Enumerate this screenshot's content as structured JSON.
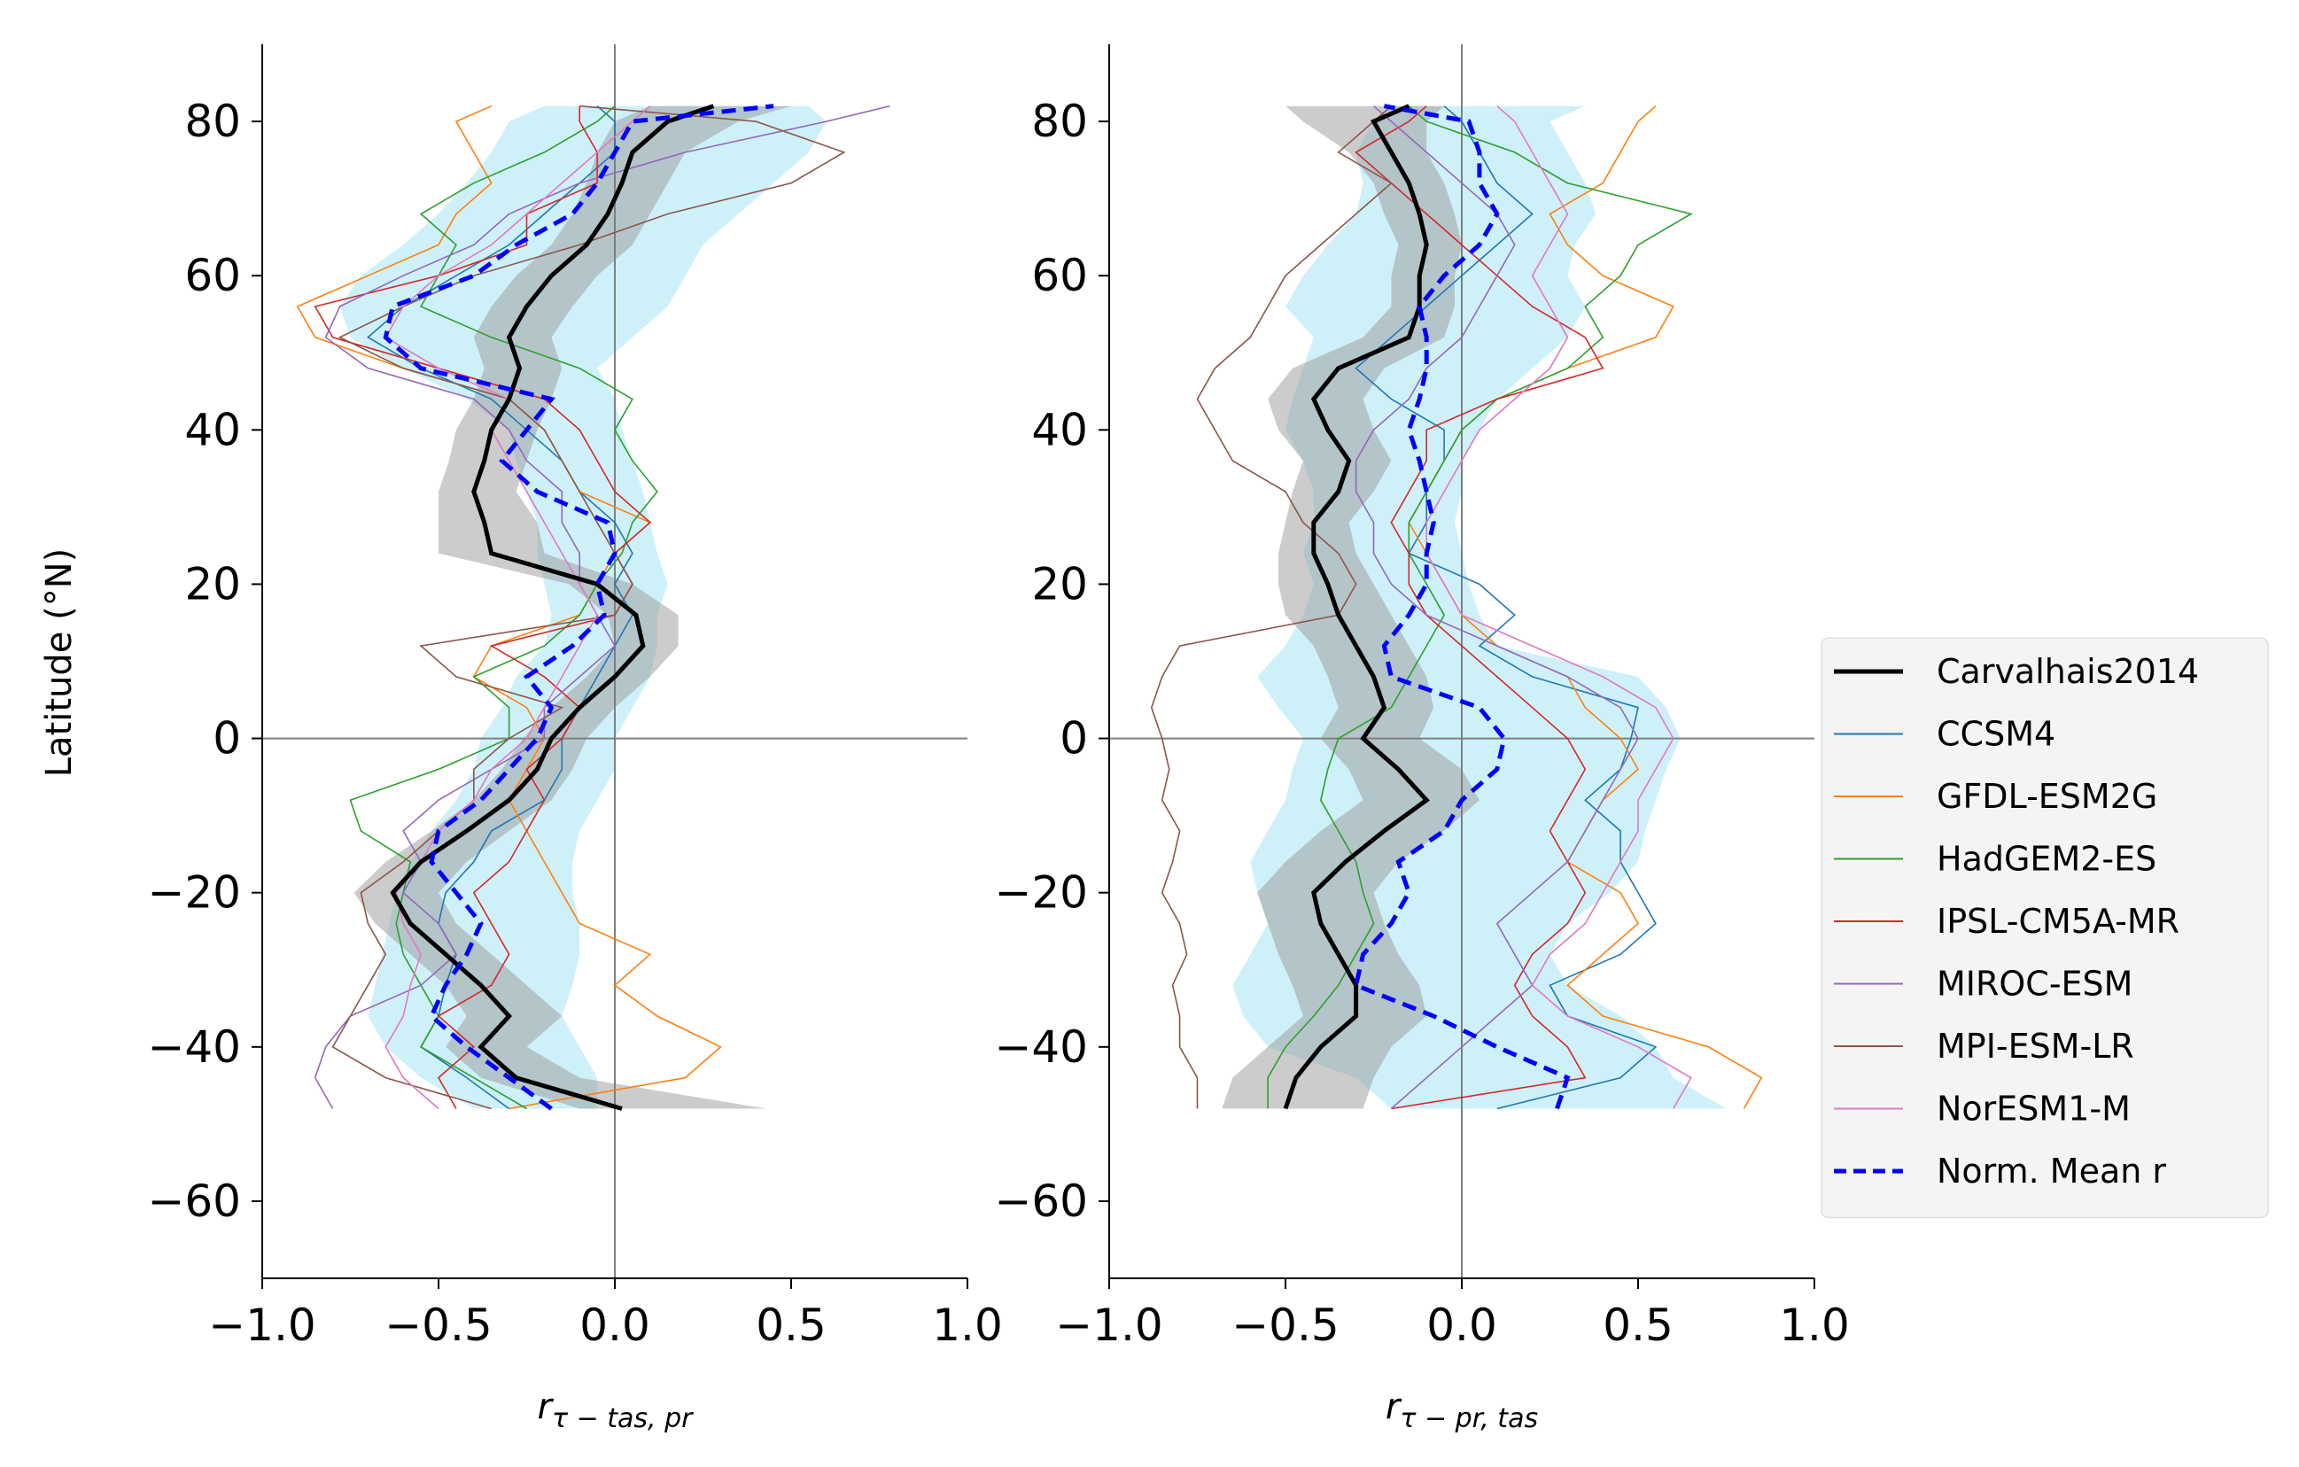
{
  "figure": {
    "ylabel": "Latitude (°N)",
    "legend_position": "right",
    "legend_entries": [
      {
        "name": "Carvalhais2014",
        "color": "#000000",
        "style": "solid-thick"
      },
      {
        "name": "CCSM4",
        "color": "#1f77b4",
        "style": "solid"
      },
      {
        "name": "GFDL-ESM2G",
        "color": "#ff7f0e",
        "style": "solid"
      },
      {
        "name": "HadGEM2-ES",
        "color": "#2ca02c",
        "style": "solid"
      },
      {
        "name": "IPSL-CM5A-MR",
        "color": "#d62728",
        "style": "solid"
      },
      {
        "name": "MIROC-ESM",
        "color": "#9467bd",
        "style": "solid"
      },
      {
        "name": "MPI-ESM-LR",
        "color": "#8c564b",
        "style": "solid"
      },
      {
        "name": "NorESM1-M",
        "color": "#e377c2",
        "style": "solid"
      },
      {
        "name": "Norm. Mean r",
        "color": "#0000ff",
        "style": "dashed"
      }
    ]
  },
  "chart_data": [
    {
      "type": "line",
      "xlabel_main": "r",
      "xlabel_sub": "τ − tas, pr",
      "xlim": [
        -1.0,
        1.0
      ],
      "ylim": [
        -70,
        90
      ],
      "xticks": [
        "−1.0",
        "−0.5",
        "0.0",
        "0.5",
        "1.0"
      ],
      "yticks": [
        "−60",
        "−40",
        "−20",
        "0",
        "20",
        "40",
        "60",
        "80"
      ],
      "grid": false,
      "reference_lines": {
        "x": 0,
        "y": 0
      },
      "lat": [
        -48,
        -44,
        -40,
        -36,
        -32,
        -28,
        -24,
        -20,
        -16,
        -12,
        -8,
        -4,
        0,
        4,
        8,
        12,
        16,
        20,
        24,
        28,
        32,
        36,
        40,
        44,
        48,
        52,
        56,
        60,
        64,
        68,
        72,
        76,
        80,
        82
      ],
      "carvalhais": {
        "r": [
          0.02,
          -0.28,
          -0.38,
          -0.3,
          -0.38,
          -0.48,
          -0.58,
          -0.63,
          -0.55,
          -0.42,
          -0.3,
          -0.22,
          -0.18,
          -0.1,
          0.0,
          0.08,
          0.06,
          -0.05,
          -0.35,
          -0.37,
          -0.4,
          -0.37,
          -0.35,
          -0.3,
          -0.27,
          -0.3,
          -0.25,
          -0.18,
          -0.08,
          -0.02,
          0.02,
          0.05,
          0.15,
          0.28
        ],
        "lower": [
          -0.1,
          -0.38,
          -0.48,
          -0.42,
          -0.48,
          -0.58,
          -0.68,
          -0.74,
          -0.65,
          -0.52,
          -0.4,
          -0.32,
          -0.26,
          -0.18,
          -0.08,
          0.0,
          -0.02,
          -0.13,
          -0.5,
          -0.5,
          -0.5,
          -0.47,
          -0.45,
          -0.4,
          -0.37,
          -0.4,
          -0.35,
          -0.28,
          -0.18,
          -0.12,
          -0.08,
          -0.05,
          0.0,
          0.1
        ],
        "upper": [
          0.43,
          -0.1,
          -0.25,
          -0.15,
          -0.25,
          -0.35,
          -0.45,
          -0.5,
          -0.42,
          -0.3,
          -0.18,
          -0.12,
          -0.08,
          0.0,
          0.1,
          0.18,
          0.18,
          0.05,
          -0.2,
          -0.22,
          -0.28,
          -0.25,
          -0.22,
          -0.18,
          -0.15,
          -0.18,
          -0.12,
          -0.05,
          0.05,
          0.1,
          0.15,
          0.2,
          0.35,
          0.5
        ]
      },
      "spread": {
        "lower": [
          -0.4,
          -0.55,
          -0.65,
          -0.7,
          -0.68,
          -0.66,
          -0.64,
          -0.62,
          -0.58,
          -0.52,
          -0.45,
          -0.4,
          -0.38,
          -0.32,
          -0.28,
          -0.2,
          -0.18,
          -0.2,
          -0.22,
          -0.22,
          -0.25,
          -0.28,
          -0.3,
          -0.42,
          -0.6,
          -0.75,
          -0.78,
          -0.72,
          -0.6,
          -0.5,
          -0.42,
          -0.35,
          -0.3,
          -0.2
        ],
        "upper": [
          -0.05,
          -0.05,
          -0.1,
          -0.15,
          -0.12,
          -0.1,
          -0.1,
          -0.12,
          -0.12,
          -0.1,
          -0.05,
          0.0,
          0.0,
          0.05,
          0.1,
          0.12,
          0.12,
          0.15,
          0.12,
          0.1,
          0.08,
          0.05,
          0.02,
          0.0,
          -0.05,
          0.05,
          0.15,
          0.2,
          0.25,
          0.35,
          0.45,
          0.55,
          0.6,
          0.55
        ]
      },
      "models": [
        {
          "name": "CCSM4",
          "r": [
            -0.3,
            -0.42,
            -0.55,
            -0.5,
            -0.48,
            -0.45,
            -0.5,
            -0.48,
            -0.4,
            -0.35,
            -0.2,
            -0.15,
            -0.15,
            -0.1,
            -0.05,
            0.0,
            0.05,
            0.0,
            0.05,
            0.0,
            -0.1,
            -0.15,
            -0.25,
            -0.35,
            -0.55,
            -0.7,
            -0.6,
            -0.45,
            -0.3,
            -0.2,
            -0.1,
            0.0,
            0.0,
            -0.05
          ]
        },
        {
          "name": "GFDL-ESM2G",
          "r": [
            -0.3,
            0.2,
            0.3,
            0.12,
            0.0,
            0.1,
            -0.1,
            -0.15,
            -0.2,
            -0.25,
            -0.3,
            -0.25,
            -0.2,
            -0.25,
            -0.4,
            -0.35,
            -0.1,
            -0.05,
            0.0,
            0.1,
            -0.1,
            -0.15,
            -0.2,
            -0.3,
            -0.6,
            -0.85,
            -0.9,
            -0.7,
            -0.5,
            -0.45,
            -0.35,
            -0.4,
            -0.45,
            -0.35
          ]
        },
        {
          "name": "HadGEM2-ES",
          "r": [
            -0.25,
            -0.4,
            -0.55,
            -0.5,
            -0.55,
            -0.6,
            -0.62,
            -0.6,
            -0.58,
            -0.72,
            -0.75,
            -0.5,
            -0.3,
            -0.3,
            -0.4,
            -0.2,
            -0.1,
            -0.05,
            0.02,
            0.05,
            0.12,
            0.05,
            0.0,
            0.05,
            -0.1,
            -0.35,
            -0.55,
            -0.5,
            -0.45,
            -0.55,
            -0.4,
            -0.2,
            -0.05,
            0.0
          ]
        },
        {
          "name": "IPSL-CM5A-MR",
          "r": [
            -0.45,
            -0.5,
            -0.4,
            -0.5,
            -0.35,
            -0.3,
            -0.35,
            -0.4,
            -0.3,
            -0.25,
            -0.2,
            -0.25,
            -0.15,
            -0.1,
            -0.2,
            -0.35,
            0.0,
            0.05,
            0.0,
            0.1,
            0.0,
            -0.05,
            -0.1,
            -0.2,
            -0.5,
            -0.8,
            -0.85,
            -0.5,
            -0.25,
            -0.25,
            -0.05,
            -0.05,
            -0.1,
            -0.1
          ]
        },
        {
          "name": "MIROC-ESM",
          "r": [
            -0.8,
            -0.85,
            -0.82,
            -0.75,
            -0.55,
            -0.45,
            -0.5,
            -0.6,
            -0.55,
            -0.6,
            -0.5,
            -0.35,
            -0.2,
            -0.2,
            -0.1,
            0.0,
            -0.05,
            -0.1,
            -0.1,
            -0.15,
            -0.15,
            -0.25,
            -0.3,
            -0.4,
            -0.7,
            -0.82,
            -0.78,
            -0.6,
            -0.4,
            -0.3,
            -0.1,
            0.2,
            0.6,
            0.78
          ]
        },
        {
          "name": "MPI-ESM-LR",
          "r": [
            -0.35,
            -0.65,
            -0.8,
            -0.75,
            -0.7,
            -0.65,
            -0.7,
            -0.72,
            -0.6,
            -0.5,
            -0.4,
            -0.4,
            -0.3,
            -0.15,
            -0.45,
            -0.55,
            0.0,
            0.05,
            0.0,
            -0.05,
            -0.1,
            -0.15,
            -0.2,
            -0.3,
            -0.6,
            -0.78,
            -0.6,
            -0.4,
            -0.1,
            0.15,
            0.5,
            0.65,
            0.4,
            -0.1
          ]
        },
        {
          "name": "NorESM1-M",
          "r": [
            -0.5,
            -0.6,
            -0.65,
            -0.6,
            -0.58,
            -0.55,
            -0.6,
            -0.62,
            -0.55,
            -0.5,
            -0.4,
            -0.35,
            -0.25,
            -0.2,
            -0.15,
            -0.1,
            -0.05,
            -0.1,
            -0.15,
            -0.2,
            -0.25,
            -0.3,
            -0.35,
            -0.3,
            -0.5,
            -0.65,
            -0.6,
            -0.5,
            -0.35,
            -0.25,
            -0.15,
            -0.05,
            0.05,
            0.1
          ]
        }
      ],
      "norm_mean": [
        -0.18,
        -0.3,
        -0.42,
        -0.52,
        -0.48,
        -0.42,
        -0.38,
        -0.45,
        -0.52,
        -0.5,
        -0.38,
        -0.3,
        -0.22,
        -0.18,
        -0.25,
        -0.12,
        -0.03,
        -0.05,
        0.0,
        -0.02,
        -0.22,
        -0.32,
        -0.25,
        -0.18,
        -0.55,
        -0.65,
        -0.63,
        -0.4,
        -0.28,
        -0.12,
        -0.05,
        0.0,
        0.05,
        0.45
      ]
    },
    {
      "type": "line",
      "xlabel_main": "r",
      "xlabel_sub": "τ − pr, tas",
      "xlim": [
        -1.0,
        1.0
      ],
      "ylim": [
        -70,
        90
      ],
      "xticks": [
        "−1.0",
        "−0.5",
        "0.0",
        "0.5",
        "1.0"
      ],
      "yticks": [
        "−60",
        "−40",
        "−20",
        "0",
        "20",
        "40",
        "60",
        "80"
      ],
      "grid": false,
      "reference_lines": {
        "x": 0,
        "y": 0
      },
      "lat": [
        -48,
        -44,
        -40,
        -36,
        -32,
        -28,
        -24,
        -20,
        -16,
        -12,
        -8,
        -4,
        0,
        4,
        8,
        12,
        16,
        20,
        24,
        28,
        32,
        36,
        40,
        44,
        48,
        52,
        56,
        60,
        64,
        68,
        72,
        76,
        80,
        82
      ],
      "carvalhais": {
        "r": [
          -0.5,
          -0.47,
          -0.4,
          -0.3,
          -0.3,
          -0.35,
          -0.4,
          -0.42,
          -0.33,
          -0.22,
          -0.1,
          -0.18,
          -0.28,
          -0.22,
          -0.25,
          -0.3,
          -0.35,
          -0.38,
          -0.42,
          -0.42,
          -0.35,
          -0.32,
          -0.38,
          -0.42,
          -0.35,
          -0.15,
          -0.12,
          -0.12,
          -0.1,
          -0.12,
          -0.15,
          -0.2,
          -0.25,
          -0.15
        ],
        "lower": [
          -0.68,
          -0.65,
          -0.55,
          -0.45,
          -0.48,
          -0.52,
          -0.55,
          -0.58,
          -0.5,
          -0.4,
          -0.28,
          -0.32,
          -0.4,
          -0.35,
          -0.38,
          -0.42,
          -0.5,
          -0.52,
          -0.52,
          -0.5,
          -0.48,
          -0.45,
          -0.52,
          -0.55,
          -0.48,
          -0.28,
          -0.2,
          -0.2,
          -0.18,
          -0.22,
          -0.25,
          -0.32,
          -0.45,
          -0.5
        ],
        "upper": [
          -0.28,
          -0.25,
          -0.2,
          -0.1,
          -0.12,
          -0.18,
          -0.22,
          -0.25,
          -0.18,
          -0.05,
          0.05,
          0.0,
          -0.12,
          -0.08,
          -0.1,
          -0.15,
          -0.2,
          -0.25,
          -0.3,
          -0.32,
          -0.25,
          -0.2,
          -0.25,
          -0.28,
          -0.22,
          -0.05,
          -0.02,
          -0.02,
          0.0,
          -0.02,
          -0.05,
          -0.1,
          -0.1,
          -0.05
        ]
      },
      "spread": {
        "lower": [
          -0.2,
          -0.3,
          -0.55,
          -0.62,
          -0.65,
          -0.6,
          -0.55,
          -0.58,
          -0.6,
          -0.55,
          -0.5,
          -0.48,
          -0.45,
          -0.52,
          -0.58,
          -0.5,
          -0.45,
          -0.42,
          -0.45,
          -0.42,
          -0.42,
          -0.45,
          -0.5,
          -0.48,
          -0.45,
          -0.42,
          -0.5,
          -0.45,
          -0.38,
          -0.3,
          -0.28,
          -0.3,
          -0.25,
          -0.2
        ],
        "upper": [
          0.75,
          0.6,
          0.55,
          0.45,
          0.3,
          0.25,
          0.3,
          0.42,
          0.5,
          0.52,
          0.55,
          0.58,
          0.62,
          0.58,
          0.5,
          0.1,
          0.05,
          0.02,
          0.0,
          -0.02,
          0.0,
          0.0,
          0.05,
          0.1,
          0.2,
          0.3,
          0.35,
          0.3,
          0.32,
          0.38,
          0.35,
          0.3,
          0.25,
          0.35
        ]
      },
      "models": [
        {
          "name": "CCSM4",
          "r": [
            0.1,
            0.45,
            0.55,
            0.3,
            0.25,
            0.45,
            0.55,
            0.5,
            0.45,
            0.45,
            0.35,
            0.45,
            0.48,
            0.5,
            0.2,
            0.05,
            0.15,
            0.05,
            -0.15,
            -0.1,
            -0.1,
            -0.05,
            -0.05,
            -0.2,
            -0.3,
            -0.2,
            -0.1,
            0.0,
            0.1,
            0.2,
            0.1,
            0.05,
            0.0,
            -0.05
          ]
        },
        {
          "name": "GFDL-ESM2G",
          "r": [
            0.8,
            0.85,
            0.7,
            0.4,
            0.3,
            0.4,
            0.5,
            0.45,
            0.3,
            0.35,
            0.4,
            0.5,
            0.45,
            0.35,
            0.3,
            0.1,
            0.0,
            -0.05,
            -0.1,
            -0.15,
            -0.1,
            -0.05,
            0.0,
            0.1,
            0.3,
            0.55,
            0.6,
            0.4,
            0.3,
            0.25,
            0.4,
            0.45,
            0.5,
            0.55
          ]
        },
        {
          "name": "HadGEM2-ES",
          "r": [
            -0.55,
            -0.55,
            -0.5,
            -0.42,
            -0.35,
            -0.3,
            -0.25,
            -0.28,
            -0.3,
            -0.35,
            -0.4,
            -0.38,
            -0.35,
            -0.2,
            -0.15,
            -0.1,
            -0.05,
            -0.1,
            -0.15,
            -0.15,
            -0.1,
            -0.05,
            0.0,
            0.1,
            0.3,
            0.4,
            0.35,
            0.45,
            0.5,
            0.65,
            0.3,
            0.15,
            -0.1,
            -0.15
          ]
        },
        {
          "name": "IPSL-CM5A-MR",
          "r": [
            -0.2,
            0.35,
            0.3,
            0.2,
            0.15,
            0.2,
            0.3,
            0.35,
            0.3,
            0.25,
            0.3,
            0.35,
            0.3,
            0.2,
            0.1,
            0.0,
            -0.1,
            -0.15,
            -0.15,
            -0.2,
            -0.15,
            -0.1,
            -0.1,
            0.1,
            0.4,
            0.35,
            0.2,
            0.1,
            0.0,
            -0.1,
            -0.2,
            -0.3,
            -0.15,
            -0.1
          ]
        },
        {
          "name": "MIROC-ESM",
          "r": [
            -0.2,
            -0.1,
            0.0,
            0.1,
            0.2,
            0.15,
            0.1,
            0.2,
            0.3,
            0.35,
            0.4,
            0.45,
            0.5,
            0.45,
            0.3,
            0.1,
            -0.1,
            -0.2,
            -0.25,
            -0.25,
            -0.3,
            -0.3,
            -0.25,
            -0.15,
            -0.1,
            0.0,
            0.05,
            0.1,
            0.15,
            0.1,
            0.0,
            -0.1,
            -0.2,
            -0.25
          ]
        },
        {
          "name": "MPI-ESM-LR",
          "r": [
            -0.75,
            -0.75,
            -0.8,
            -0.8,
            -0.82,
            -0.78,
            -0.8,
            -0.85,
            -0.82,
            -0.8,
            -0.85,
            -0.83,
            -0.85,
            -0.88,
            -0.85,
            -0.8,
            -0.35,
            -0.3,
            -0.35,
            -0.45,
            -0.5,
            -0.65,
            -0.7,
            -0.75,
            -0.7,
            -0.6,
            -0.55,
            -0.5,
            -0.4,
            -0.3,
            -0.2,
            -0.35,
            -0.25,
            -0.2
          ]
        },
        {
          "name": "NorESM1-M",
          "r": [
            0.6,
            0.65,
            0.5,
            0.3,
            0.2,
            0.25,
            0.35,
            0.4,
            0.45,
            0.5,
            0.5,
            0.55,
            0.6,
            0.55,
            0.4,
            0.2,
            0.0,
            -0.05,
            -0.1,
            -0.1,
            -0.05,
            0.0,
            0.05,
            0.15,
            0.25,
            0.3,
            0.25,
            0.2,
            0.25,
            0.3,
            0.25,
            0.2,
            0.15,
            0.1
          ]
        }
      ],
      "norm_mean": [
        0.27,
        0.3,
        0.1,
        -0.08,
        -0.3,
        -0.28,
        -0.2,
        -0.15,
        -0.18,
        -0.05,
        0.0,
        0.1,
        0.12,
        0.05,
        -0.2,
        -0.22,
        -0.15,
        -0.1,
        -0.1,
        -0.08,
        -0.1,
        -0.12,
        -0.15,
        -0.12,
        -0.1,
        -0.1,
        -0.12,
        -0.05,
        0.05,
        0.1,
        0.05,
        0.05,
        0.02,
        -0.22
      ]
    }
  ]
}
